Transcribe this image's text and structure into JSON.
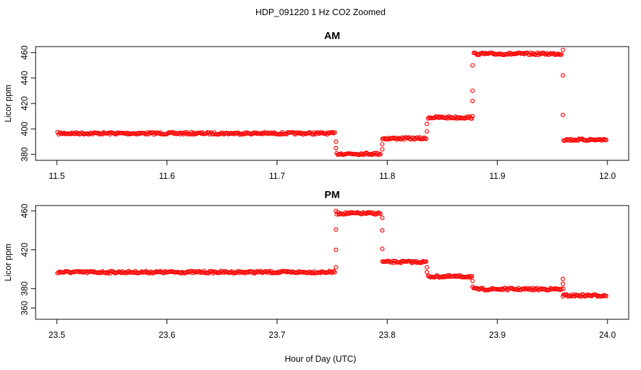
{
  "figure": {
    "title": "HDP_091220  1 Hz CO2 Zoomed",
    "xlabel": "Hour of Day (UTC)",
    "marker_color": "#ff0000"
  },
  "chart_data": [
    {
      "type": "scatter",
      "title": "AM",
      "ylabel": "Licor ppm",
      "xlabel": "",
      "xlim": [
        11.5,
        12.0
      ],
      "ylim": [
        378,
        462
      ],
      "xticks": [
        11.5,
        11.6,
        11.7,
        11.8,
        11.9,
        12.0
      ],
      "xtick_labels": [
        "11.5",
        "11.6",
        "11.7",
        "11.8",
        "11.9",
        "12.0"
      ],
      "yticks": [
        380,
        400,
        420,
        440,
        460
      ],
      "ytick_labels": [
        "380",
        "400",
        "420",
        "440",
        "460"
      ],
      "grid": false,
      "levels": [
        {
          "x_start": 11.5,
          "x_end": 11.7535,
          "y": 396.5
        },
        {
          "x_start": 11.7535,
          "x_end": 11.795,
          "y": 380.5
        },
        {
          "x_start": 11.795,
          "x_end": 11.8365,
          "y": 392.5
        },
        {
          "x_start": 11.8365,
          "x_end": 11.878,
          "y": 409.0
        },
        {
          "x_start": 11.878,
          "x_end": 11.9595,
          "y": 459.0
        },
        {
          "x_start": 11.9595,
          "x_end": 12.0,
          "y": 391.5
        }
      ],
      "transition_points": [
        {
          "x": 11.7535,
          "y": 390
        },
        {
          "x": 11.7535,
          "y": 385
        },
        {
          "x": 11.7955,
          "y": 384
        },
        {
          "x": 11.7955,
          "y": 388
        },
        {
          "x": 11.836,
          "y": 398
        },
        {
          "x": 11.836,
          "y": 404
        },
        {
          "x": 11.8775,
          "y": 410
        },
        {
          "x": 11.8775,
          "y": 422
        },
        {
          "x": 11.8775,
          "y": 430
        },
        {
          "x": 11.8775,
          "y": 450
        },
        {
          "x": 11.9595,
          "y": 462
        },
        {
          "x": 11.9595,
          "y": 442
        },
        {
          "x": 11.9595,
          "y": 411
        }
      ]
    },
    {
      "type": "scatter",
      "title": "PM",
      "ylabel": "Licor ppm",
      "xlabel": "",
      "xlim": [
        23.5,
        24.0
      ],
      "ylim": [
        352,
        462
      ],
      "xticks": [
        23.5,
        23.6,
        23.7,
        23.8,
        23.9,
        24.0
      ],
      "xtick_labels": [
        "23.5",
        "23.6",
        "23.7",
        "23.8",
        "23.9",
        "24.0"
      ],
      "yticks": [
        360,
        380,
        420,
        460
      ],
      "ytick_labels": [
        "360",
        "380",
        "420",
        "460"
      ],
      "grid": false,
      "levels": [
        {
          "x_start": 23.5,
          "x_end": 23.7535,
          "y": 397.0
        },
        {
          "x_start": 23.7535,
          "x_end": 23.795,
          "y": 457.5
        },
        {
          "x_start": 23.795,
          "x_end": 23.8365,
          "y": 407.5
        },
        {
          "x_start": 23.8365,
          "x_end": 23.878,
          "y": 392.5
        },
        {
          "x_start": 23.878,
          "x_end": 23.9595,
          "y": 379.5
        },
        {
          "x_start": 23.9595,
          "x_end": 24.0,
          "y": 373.0
        }
      ],
      "transition_points": [
        {
          "x": 23.7535,
          "y": 402
        },
        {
          "x": 23.7535,
          "y": 420
        },
        {
          "x": 23.7535,
          "y": 441
        },
        {
          "x": 23.7535,
          "y": 460
        },
        {
          "x": 23.7955,
          "y": 453
        },
        {
          "x": 23.7955,
          "y": 440
        },
        {
          "x": 23.7955,
          "y": 421
        },
        {
          "x": 23.836,
          "y": 402
        },
        {
          "x": 23.836,
          "y": 397
        },
        {
          "x": 23.8775,
          "y": 388
        },
        {
          "x": 23.8775,
          "y": 382
        },
        {
          "x": 23.9595,
          "y": 390
        },
        {
          "x": 23.9595,
          "y": 385
        },
        {
          "x": 23.9595,
          "y": 372
        },
        {
          "x": 23.96,
          "y": 380
        }
      ]
    }
  ]
}
